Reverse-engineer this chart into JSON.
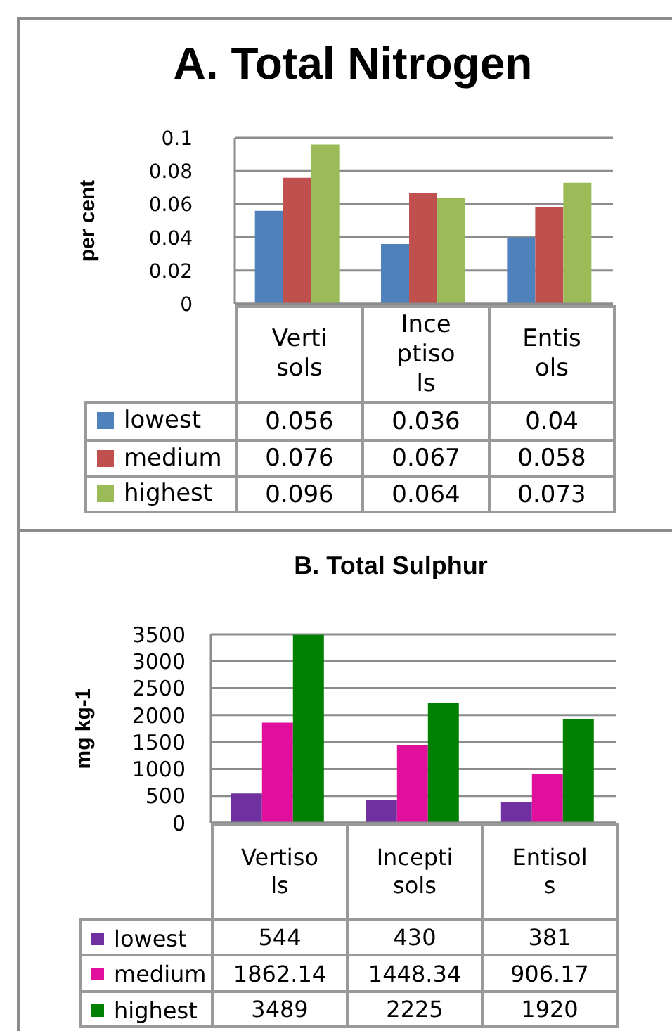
{
  "chart_data": [
    {
      "type": "bar",
      "title": "A. Total Nitrogen",
      "ylabel": "per cent",
      "categories": [
        "Vertisols",
        "Inceptisols",
        "Entisols"
      ],
      "series": [
        {
          "name": "lowest",
          "color": "#4f81bd",
          "values": [
            0.056,
            0.036,
            0.04
          ]
        },
        {
          "name": "medium",
          "color": "#c0504d",
          "values": [
            0.076,
            0.067,
            0.058
          ]
        },
        {
          "name": "highest",
          "color": "#9bbb59",
          "values": [
            0.096,
            0.064,
            0.073
          ]
        }
      ],
      "ylim": [
        0,
        0.1
      ],
      "yticks": [
        0,
        0.02,
        0.04,
        0.06,
        0.08,
        0.1
      ],
      "grid": "y",
      "legend": "bottom",
      "data_labels": true
    },
    {
      "type": "bar",
      "title": "B. Total Sulphur",
      "ylabel": "mg kg-1",
      "categories": [
        "Vertisols",
        "Inceptisols",
        "Entisols"
      ],
      "series": [
        {
          "name": "lowest",
          "color": "#7030a0",
          "values": [
            544,
            430,
            381
          ]
        },
        {
          "name": "medium",
          "color": "#e0109c",
          "values": [
            1862.14,
            1448.34,
            906.17
          ]
        },
        {
          "name": "highest",
          "color": "#008000",
          "values": [
            3489,
            2225,
            1920
          ]
        }
      ],
      "ylim": [
        0,
        3500
      ],
      "yticks": [
        0,
        500,
        1000,
        1500,
        2000,
        2500,
        3000,
        3500
      ],
      "grid": "y",
      "legend": "bottom",
      "data_labels": true
    }
  ]
}
